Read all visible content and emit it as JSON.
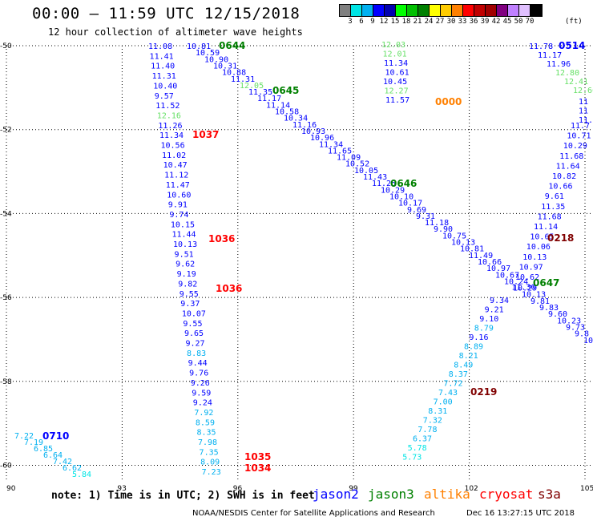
{
  "header": {
    "title": "00:00 – 11:59 UTC 12/15/2018",
    "subtitle": "12 hour collection of altimeter wave heights"
  },
  "legend": {
    "colors": [
      "#808080",
      "#00e5e5",
      "#00b0f0",
      "#0000ff",
      "#0000b0",
      "#00ff00",
      "#00c000",
      "#008000",
      "#ffff00",
      "#ffcc00",
      "#ff8000",
      "#ff0000",
      "#c00000",
      "#a00000",
      "#800080",
      "#c080ff",
      "#e0c0ff",
      "#000000"
    ],
    "labels": [
      "3",
      "6",
      "9",
      "12",
      "15",
      "18",
      "21",
      "24",
      "27",
      "30",
      "33",
      "36",
      "39",
      "42",
      "45",
      "50",
      "70"
    ],
    "units": "(ft)"
  },
  "axes": {
    "x_ticks": [
      "90",
      "93",
      "96",
      "99",
      "102",
      "105"
    ],
    "y_ticks": [
      "-50",
      "-52",
      "-54",
      "-56",
      "-58",
      "-60"
    ]
  },
  "footer": {
    "note": "note: 1) Time is in UTC; 2) SWH is in feet",
    "satellites": [
      {
        "name": "jason2",
        "color": "#0000ff"
      },
      {
        "name": "jason3",
        "color": "#008000"
      },
      {
        "name": "altika",
        "color": "#ff8000"
      },
      {
        "name": "cryosat",
        "color": "#ff0000"
      },
      {
        "name": "s3a",
        "color": "#800000"
      }
    ],
    "credit": "NOAA/NESDIS Center for Satellite Applications and Research",
    "generated": "Dec 16 13:27:15 UTC 2018"
  },
  "time_labels": [
    {
      "text": "0644",
      "color": "#008000"
    },
    {
      "text": "0645",
      "color": "#008000"
    },
    {
      "text": "0646",
      "color": "#008000"
    },
    {
      "text": "0647",
      "color": "#008000"
    },
    {
      "text": "0514",
      "color": "#0000ff"
    },
    {
      "text": "0000",
      "color": "#ff8000"
    },
    {
      "text": "1037",
      "color": "#ff0000"
    },
    {
      "text": "1036",
      "color": "#ff0000"
    },
    {
      "text": "1036",
      "color": "#ff0000"
    },
    {
      "text": "1035",
      "color": "#ff0000"
    },
    {
      "text": "1034",
      "color": "#ff0000"
    },
    {
      "text": "0218",
      "color": "#800000"
    },
    {
      "text": "0219",
      "color": "#800000"
    },
    {
      "text": "0710",
      "color": "#0000ff"
    }
  ],
  "tracks": [
    {
      "name": "track-a",
      "values": [
        "11.08",
        "11.41",
        "11.40",
        "11.31",
        "10.40",
        "9.57",
        "11.52",
        "12.16",
        "11.26",
        "11.34",
        "10.56",
        "11.02",
        "10.47",
        "11.12",
        "11.47",
        "10.60",
        "9.91",
        "9.74",
        "10.15",
        "11.44",
        "10.13",
        "9.51",
        "9.62",
        "9.19",
        "9.82",
        "9.55",
        "9.37",
        "10.07",
        "9.55",
        "9.65",
        "9.27",
        "8.83",
        "9.44",
        "9.76",
        "9.26",
        "9.59",
        "9.24",
        "7.92",
        "8.59",
        "8.35",
        "7.98",
        "7.35",
        "8.09",
        "7.23"
      ]
    },
    {
      "name": "track-b",
      "values": [
        "10.81",
        "10.59",
        "10.90",
        "10.31",
        "10.88",
        "11.31",
        "12.05",
        "11.35",
        "11.17",
        "11.14",
        "10.58",
        "10.34",
        "11.16",
        "10.93",
        "10.96",
        "11.34",
        "11.65",
        "11.09",
        "10.52",
        "10.05",
        "11.43",
        "11.25",
        "10.29",
        "10.10",
        "10.17",
        "9.69",
        "9.31",
        "11.18",
        "9.90",
        "10.75",
        "10.13",
        "10.81",
        "11.49",
        "10.66",
        "10.97",
        "10.67",
        "10.24",
        "10.29",
        "10.13",
        "9.81",
        "9.83",
        "9.60",
        "10.23",
        "9.73",
        "9.8",
        "10"
      ]
    },
    {
      "name": "track-c",
      "values": [
        "12.03",
        "12.01",
        "11.34",
        "10.61",
        "10.45",
        "12.27",
        "11.57"
      ]
    },
    {
      "name": "track-d",
      "values": [
        "11.78",
        "11.17",
        "11.96",
        "12.80",
        "12.41",
        "12.66",
        "11",
        "11",
        "11.2",
        "11.7",
        "10.71",
        "10.29",
        "11.68",
        "11.64",
        "10.82",
        "10.66",
        "9.61",
        "11.35",
        "11.68",
        "11.14",
        "10.65",
        "10.06",
        "10.13",
        "10.97",
        "10.62",
        "11.30",
        "9.34",
        "9.21",
        "9.10",
        "8.79",
        "9.16",
        "8.89",
        "8.21",
        "8.49",
        "8.37",
        "7.72",
        "7.43",
        "7.00",
        "8.31",
        "7.32",
        "7.78",
        "6.37",
        "5.78",
        "5.73"
      ]
    },
    {
      "name": "track-e",
      "values": [
        "7.22",
        "7.19",
        "6.85",
        "6.64",
        "7.42",
        "6.62",
        "5.84"
      ]
    }
  ]
}
